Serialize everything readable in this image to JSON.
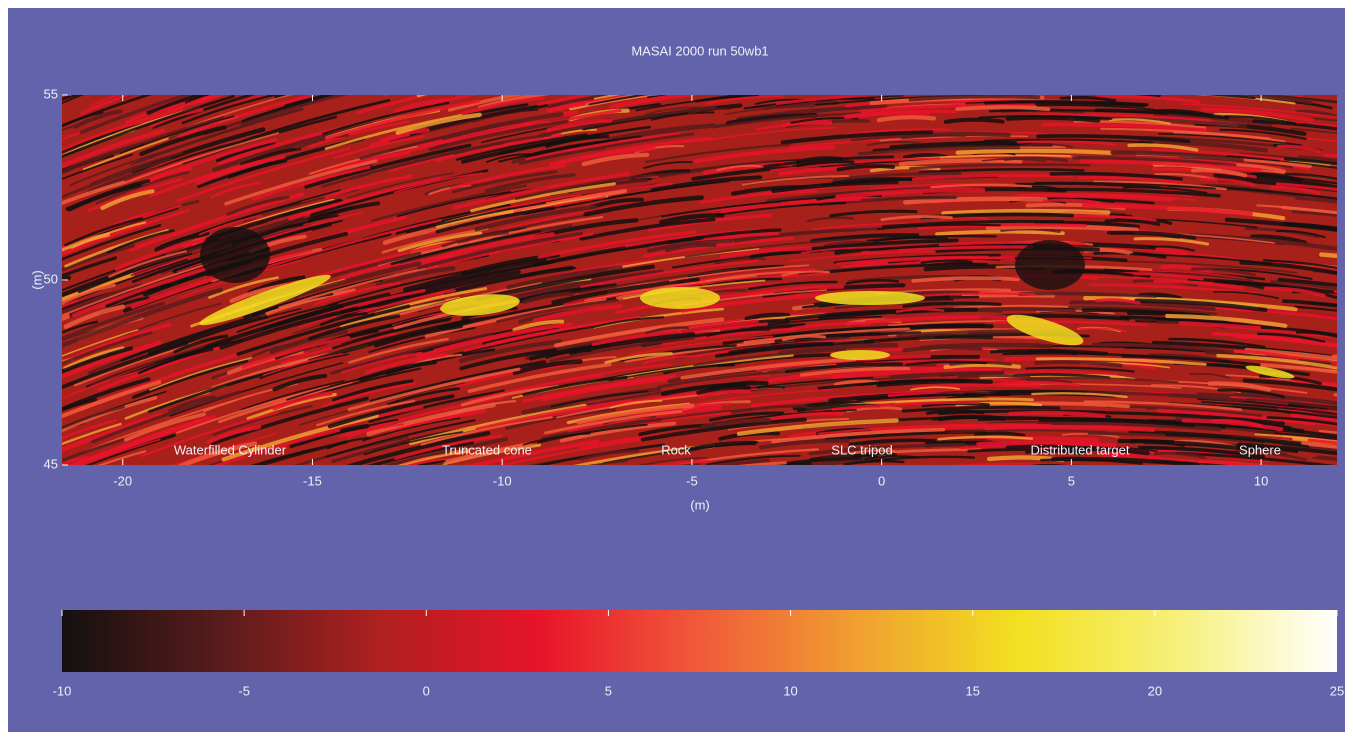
{
  "chart_data": {
    "type": "heatmap",
    "title": "MASAI 2000 run 50wb1",
    "xlabel": "(m)",
    "ylabel": "(m)",
    "xlim": [
      -21.6,
      12
    ],
    "xticks": [
      -20,
      -15,
      -10,
      -5,
      0,
      5,
      10
    ],
    "ylim": [
      45,
      55
    ],
    "yticks": [
      45,
      50,
      55
    ],
    "annotations": [
      "Waterfilled Cylinder",
      "Truncated cone",
      "Rock",
      "SLC tripod",
      "Distributed target",
      "Sphere"
    ],
    "colorbar": {
      "lim": [
        -10,
        25
      ],
      "ticks": [
        -10,
        -5,
        0,
        5,
        10,
        15,
        20,
        25
      ],
      "colors": [
        "#141010",
        "#5a1c1c",
        "#b02020",
        "#e8142a",
        "#f05a3a",
        "#f0a030",
        "#f2e020",
        "#f6f07a",
        "#ffffff"
      ]
    }
  }
}
